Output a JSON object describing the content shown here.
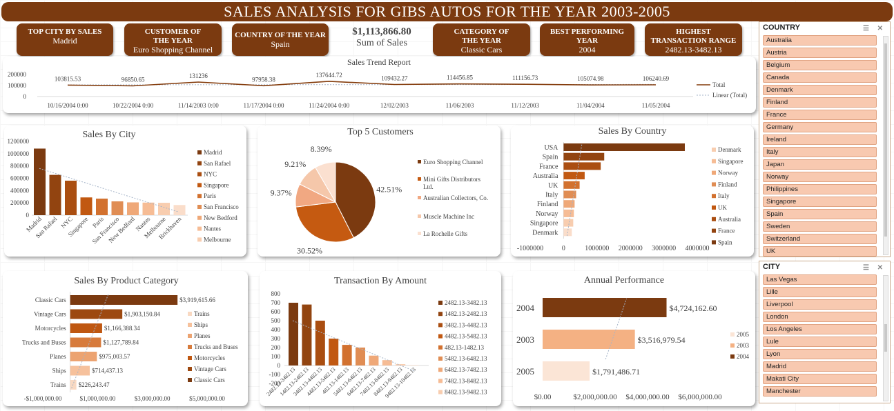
{
  "title": "SALES ANALYSIS FOR GIBS AUTOS FOR THE YEAR 2003-2005",
  "kpis": [
    {
      "label": "TOP CITY BY SALES",
      "value": "Madrid"
    },
    {
      "label": "CUSTOMER OF THE YEAR",
      "value": "Euro Shopping Channel"
    },
    {
      "label": "COUNTRY OF THE YEAR",
      "value": "Spain"
    },
    {
      "label": "CATEGORY OF THE YEAR",
      "value": "Classic Cars"
    },
    {
      "label": "BEST PERFORMING YEAR",
      "value": "2004"
    },
    {
      "label": "HIGHEST TRANSACTION RANGE",
      "value": "2482.13-3482.13"
    }
  ],
  "sum_of_sales": {
    "value": "$1,113,866.80",
    "label": "Sum of Sales"
  },
  "colors": {
    "dark": "#7b3a10",
    "mid": "#c55a11",
    "light": "#f4b183",
    "pale": "#fbe5d6",
    "accent": "#843c0c"
  },
  "slicers": {
    "country": {
      "header": "COUNTRY",
      "items": [
        "Australia",
        "Austria",
        "Belgium",
        "Canada",
        "Denmark",
        "Finland",
        "France",
        "Germany",
        "Ireland",
        "Italy",
        "Japan",
        "Norway",
        "Philippines",
        "Singapore",
        "Spain",
        "Sweden",
        "Switzerland",
        "UK"
      ]
    },
    "city": {
      "header": "CITY",
      "items": [
        "Las Vegas",
        "Lille",
        "Liverpool",
        "London",
        "Los Angeles",
        "Lule",
        "Lyon",
        "Madrid",
        "Makati City",
        "Manchester"
      ]
    }
  },
  "chart_data": [
    {
      "type": "line",
      "title": "Sales Trend Report",
      "x": [
        "10/16/2004 0:00",
        "10/22/2004 0:00",
        "11/14/2003 0:00",
        "11/17/2004 0:00",
        "11/24/2004 0:00",
        "12/02/2003",
        "11/06/2003",
        "11/12/2003",
        "11/04/2004",
        "11/05/2004"
      ],
      "series": [
        {
          "name": "Total",
          "values": [
            103815.53,
            96850.65,
            131236,
            97958.38,
            137644.72,
            109432.27,
            114456.85,
            111156.73,
            105074.98,
            106240.69
          ]
        }
      ],
      "data_labels": [
        "103815.53",
        "96850.65",
        "131236",
        "97958.38",
        "137644.72",
        "109432.27",
        "114456.85",
        "111156.73",
        "105074.98",
        "106240.69"
      ],
      "trendline": "Linear (Total)",
      "y_ticks": [
        "200000",
        "100000",
        "0"
      ],
      "ylim": [
        0,
        200000
      ],
      "legend": "right"
    },
    {
      "type": "bar",
      "title": "Sales By City",
      "categories": [
        "Madrid",
        "San Rafael",
        "NYC",
        "Singapore",
        "Paris",
        "San Francisco",
        "New Bedford",
        "Nantes",
        "Melbourne",
        "Brickhaven"
      ],
      "values": [
        1082551,
        654858,
        560787,
        288488,
        268945,
        224358,
        207875,
        204305,
        200995,
        165255
      ],
      "y_ticks": [
        "1200000",
        "1000000",
        "800000",
        "600000",
        "400000",
        "200000",
        "0"
      ],
      "ylim": [
        0,
        1200000
      ],
      "legend_entries": [
        "Madrid",
        "San Rafael",
        "NYC",
        "Singapore",
        "Paris",
        "San Francisco",
        "New Bedford",
        "Nantes",
        "Melbourne"
      ],
      "legend": "right"
    },
    {
      "type": "pie",
      "title": "Top 5 Customers",
      "labels": [
        "Euro Shopping Channel",
        "Mini Gifts Distributors Ltd.",
        "Australian Collectors, Co.",
        "Muscle Machine Inc",
        "La Rochelle Gifts"
      ],
      "values": [
        42.51,
        30.52,
        9.37,
        9.21,
        8.39
      ],
      "data_labels": [
        "42.51%",
        "30.52%",
        "9.37%",
        "9.21%",
        "8.39%"
      ],
      "legend": "right"
    },
    {
      "type": "bar",
      "orientation": "horizontal",
      "title": "Sales By Country",
      "categories": [
        "USA",
        "Spain",
        "France",
        "Australia",
        "UK",
        "Italy",
        "Finland",
        "Norway",
        "Singapore",
        "Denmark"
      ],
      "values": [
        3627982,
        1215686,
        1110916,
        630623,
        478880,
        374674,
        329581,
        307463,
        288488,
        245637
      ],
      "x_ticks": [
        "-1000000",
        "0",
        "1000000",
        "2000000",
        "3000000",
        "4000000"
      ],
      "xlim": [
        -1000000,
        4000000
      ],
      "legend_entries": [
        "Denmark",
        "Singapore",
        "Norway",
        "Finland",
        "Italy",
        "UK",
        "Australia",
        "France",
        "Spain"
      ],
      "legend": "right"
    },
    {
      "type": "bar",
      "orientation": "horizontal",
      "title": "Sales By Product Category",
      "categories": [
        "Classic Cars",
        "Vintage Cars",
        "Motorcycles",
        "Trucks and Buses",
        "Planes",
        "Ships",
        "Trains"
      ],
      "values": [
        3919615.66,
        1903150.84,
        1166388.34,
        1127789.84,
        975003.57,
        714437.13,
        226243.47
      ],
      "data_labels": [
        "$3,919,615.66",
        "$1,903,150.84",
        "$1,166,388.34",
        "$1,127,789.84",
        "$975,003.57",
        "$714,437.13",
        "$226,243.47"
      ],
      "x_ticks": [
        "-$1,000,000.00",
        "$1,000,000.00",
        "$3,000,000.00",
        "$5,000,000.00"
      ],
      "xlim": [
        -1000000,
        5000000
      ],
      "legend_entries": [
        "Trains",
        "Ships",
        "Planes",
        "Trucks and Buses",
        "Motorcycles",
        "Vintage Cars",
        "Classic Cars"
      ],
      "legend": "right"
    },
    {
      "type": "bar",
      "title": "Transaction By Amount",
      "categories": [
        "2482.13-3482.13",
        "1482.13-2482.13",
        "3482.13-4482.13",
        "4482.13-5482.13",
        "482.13-1482.13",
        "5482.13-6482.13",
        "6482.13-7482.13",
        "7482.13-8482.13",
        "8482.13-9482.13",
        "9482.13-10482.13"
      ],
      "values": [
        700,
        680,
        500,
        300,
        230,
        200,
        110,
        60,
        15,
        5
      ],
      "y_ticks": [
        "800",
        "700",
        "600",
        "500",
        "400",
        "300",
        "200",
        "100",
        "0",
        "-100",
        "-200"
      ],
      "ylim": [
        -200,
        800
      ],
      "legend_entries": [
        "2482.13-3482.13",
        "1482.13-2482.13",
        "3482.13-4482.13",
        "4482.13-5482.13",
        "482.13-1482.13",
        "5482.13-6482.13",
        "6482.13-7482.13",
        "7482.13-8482.13",
        "8482.13-9482.13"
      ],
      "legend": "right"
    },
    {
      "type": "bar",
      "orientation": "horizontal",
      "title": "Annual Performance",
      "categories": [
        "2004",
        "2003",
        "2005"
      ],
      "values": [
        4724162.6,
        3516979.54,
        1791486.71
      ],
      "data_labels": [
        "$4,724,162.60",
        "$3,516,979.54",
        "$1,791,486.71"
      ],
      "x_ticks": [
        "$0.00",
        "$2,000,000.00",
        "$4,000,000.00",
        "$6,000,000.00"
      ],
      "xlim": [
        0,
        6000000
      ],
      "legend_entries": [
        "2005",
        "2003",
        "2004"
      ],
      "legend": "right"
    }
  ]
}
